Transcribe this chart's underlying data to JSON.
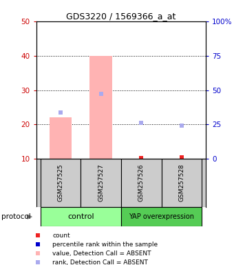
{
  "title": "GDS3220 / 1569366_a_at",
  "samples": [
    "GSM257525",
    "GSM257527",
    "GSM257526",
    "GSM257528"
  ],
  "bar_values": [
    22.0,
    40.0,
    null,
    null
  ],
  "bar_color_absent": "#ffb3b3",
  "dot_rank_absent": [
    23.5,
    29.0,
    20.5,
    19.7
  ],
  "dot_rank_absent_color": "#aaaaee",
  "dot_count": [
    null,
    null,
    10.2,
    10.5
  ],
  "dot_count_color": "#ee2222",
  "ylim_left": [
    10,
    50
  ],
  "ylim_right": [
    0,
    100
  ],
  "yticks_left": [
    10,
    20,
    30,
    40,
    50
  ],
  "yticks_right": [
    0,
    25,
    50,
    75,
    100
  ],
  "ytick_labels_left": [
    "10",
    "20",
    "30",
    "40",
    "50"
  ],
  "ytick_labels_right": [
    "0",
    "25",
    "50",
    "75",
    "100%"
  ],
  "left_tick_color": "#cc0000",
  "right_tick_color": "#0000cc",
  "groups_def": [
    {
      "label": "control",
      "start": 0,
      "end": 1,
      "color": "#99ff99"
    },
    {
      "label": "YAP overexpression",
      "start": 2,
      "end": 3,
      "color": "#55cc55"
    }
  ],
  "legend_items": [
    {
      "label": "count",
      "color": "#ee2222"
    },
    {
      "label": "percentile rank within the sample",
      "color": "#0000cc"
    },
    {
      "label": "value, Detection Call = ABSENT",
      "color": "#ffb3b3"
    },
    {
      "label": "rank, Detection Call = ABSENT",
      "color": "#aaaaee"
    }
  ],
  "bg_color": "#ffffff",
  "sample_box_color": "#cccccc",
  "protocol_label": "protocol"
}
